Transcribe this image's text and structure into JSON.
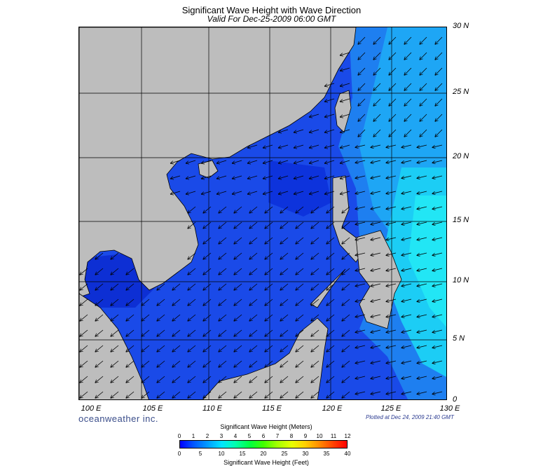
{
  "title": "Significant Wave Height with Wave Direction",
  "subtitle": "Valid For Dec-25-2009 06:00 GMT",
  "lat_labels": [
    "30 N",
    "25 N",
    "20 N",
    "15 N",
    "10 N",
    "5 N",
    "0"
  ],
  "lon_labels": [
    "100 E",
    "105 E",
    "110 E",
    "115 E",
    "120 E",
    "125 E",
    "130 E"
  ],
  "brand": "oceanweather inc.",
  "plotted": "Plotted at Dec 24, 2009 21:40 GMT",
  "colorbar": {
    "title_top": "Significant Wave Height (Meters)",
    "title_bottom": "Significant Wave Height (Feet)",
    "meter_ticks": [
      "0",
      "1",
      "2",
      "3",
      "4",
      "5",
      "6",
      "7",
      "8",
      "9",
      "10",
      "11",
      "12"
    ],
    "feet_ticks": [
      "0",
      "5",
      "10",
      "15",
      "20",
      "25",
      "30",
      "35",
      "40"
    ]
  },
  "colors": {
    "land": "#bdbdbd",
    "deep_blue": "#0a2fd8",
    "mid_blue": "#1e56ee",
    "light_blue": "#1e9cf5",
    "cyan": "#1ee0f5"
  }
}
